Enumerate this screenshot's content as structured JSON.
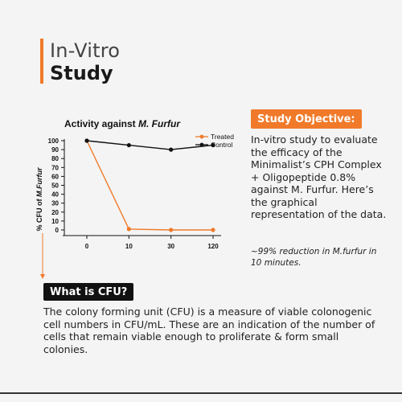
{
  "colors": {
    "accent": "#f07a2a",
    "treated": "#f07a2a",
    "control": "#111111"
  },
  "header": {
    "line1": "In-Vitro",
    "line2": "Study"
  },
  "chart_data": {
    "type": "line",
    "title_prefix": "Activity against ",
    "title_italic": "M. Furfur",
    "ylabel_prefix": "% CFU of ",
    "ylabel_italic": "M.Furfur",
    "categories": [
      "0",
      "10",
      "30",
      "120"
    ],
    "yticks": [
      0,
      10,
      20,
      30,
      40,
      50,
      60,
      70,
      80,
      90,
      100
    ],
    "ylim": [
      0,
      100
    ],
    "legend_position": "top-right",
    "series": [
      {
        "name": "Treated",
        "color": "#f07a2a",
        "values": [
          100,
          1,
          0,
          0
        ]
      },
      {
        "name": "Control",
        "color": "#111111",
        "values": [
          100,
          95,
          90,
          95
        ]
      }
    ]
  },
  "objective": {
    "badge": "Study Objective:",
    "text": "In-vitro study to evaluate the efficacy of the Minimalist’s CPH Complex + Oligopeptide 0.8% against M. Furfur. Here’s the graphical representation of the data.",
    "note": "~99% reduction in M.furfur in 10 minutes."
  },
  "cfu": {
    "badge": "What is CFU?",
    "text": "The colony forming unit (CFU) is a measure of viable colonogenic cell numbers in CFU/mL. These are an indication of the number of cells that remain viable enough to proliferate & form small colonies."
  }
}
